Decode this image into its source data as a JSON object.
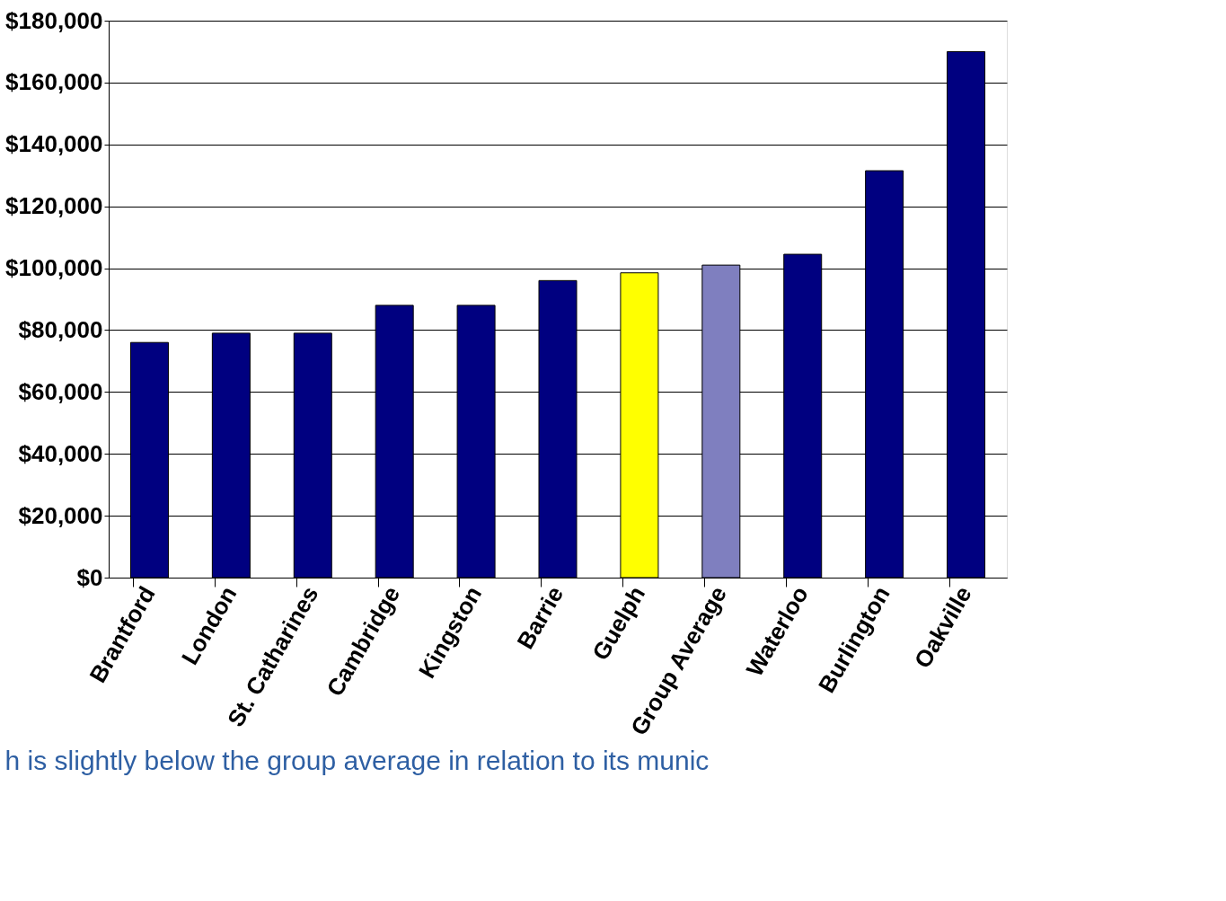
{
  "chart_data": {
    "type": "bar",
    "categories": [
      "Brantford",
      "London",
      "St. Catharines",
      "Cambridge",
      "Kingston",
      "Barrie",
      "Guelph",
      "Group Average",
      "Waterloo",
      "Burlington",
      "Oakville"
    ],
    "values": [
      76000,
      79000,
      79000,
      88000,
      88000,
      96000,
      98500,
      101000,
      104500,
      131500,
      170000
    ],
    "colors": [
      "#000080",
      "#000080",
      "#000080",
      "#000080",
      "#000080",
      "#000080",
      "#ffff00",
      "#7f7fbf",
      "#000080",
      "#000080",
      "#000080"
    ],
    "ylim": [
      0,
      180000
    ],
    "yticks": [
      {
        "value": 0,
        "label": "$0"
      },
      {
        "value": 20000,
        "label": "$20,000"
      },
      {
        "value": 40000,
        "label": "$40,000"
      },
      {
        "value": 60000,
        "label": "$60,000"
      },
      {
        "value": 80000,
        "label": "$80,000"
      },
      {
        "value": 100000,
        "label": "$100,000"
      },
      {
        "value": 120000,
        "label": "$120,000"
      },
      {
        "value": 140000,
        "label": "$140,000"
      },
      {
        "value": 160000,
        "label": "$160,000"
      },
      {
        "value": 180000,
        "label": "$180,000"
      }
    ],
    "grid": "y",
    "annotations": [
      "h is slightly below the group average in relation to its munic"
    ]
  }
}
